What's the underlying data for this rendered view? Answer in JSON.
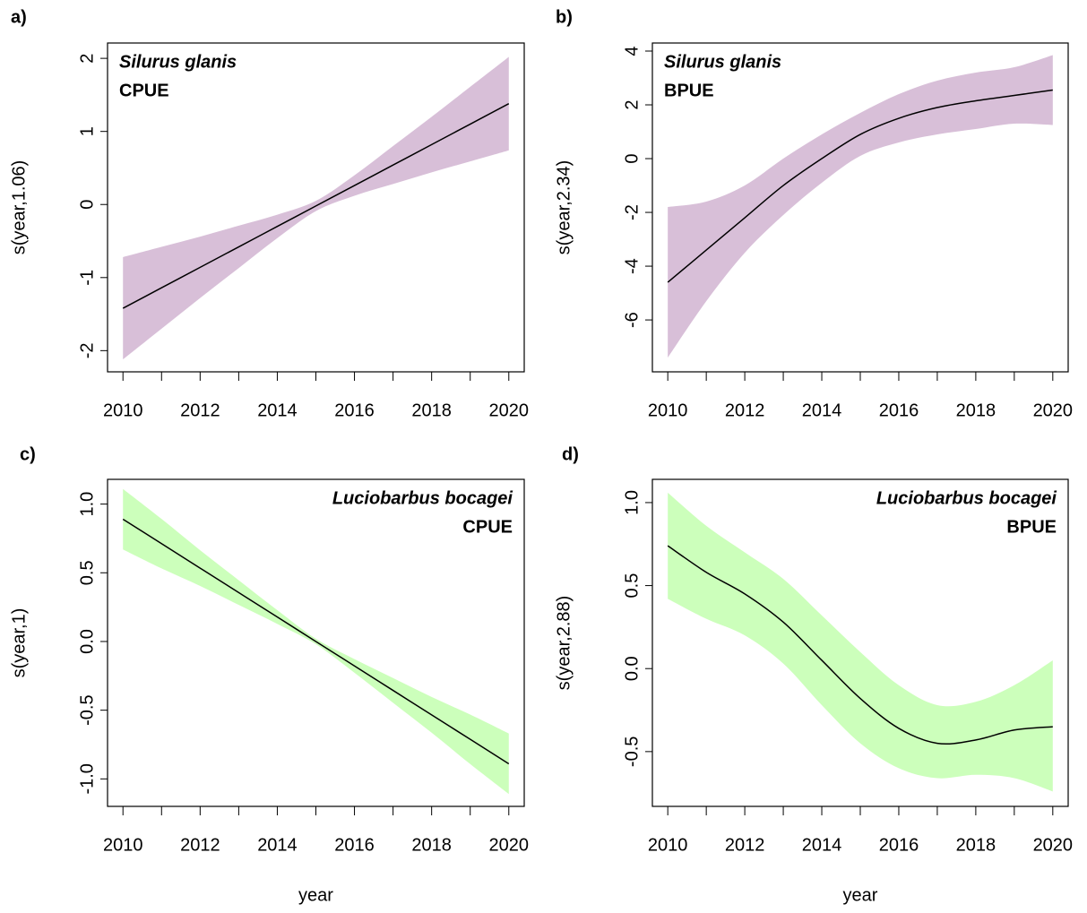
{
  "chart_data": [
    {
      "type": "line",
      "label": "a)",
      "species": "Silurus glanis",
      "metric": "CPUE",
      "ylabel": "s(year,1.06)",
      "annotation_corner": "top-left",
      "band_color": "#d8bfd8",
      "line_color": "#000000",
      "x": [
        2010,
        2011,
        2012,
        2013,
        2014,
        2015,
        2016,
        2017,
        2018,
        2019,
        2020
      ],
      "values": [
        -1.42,
        -1.14,
        -0.86,
        -0.58,
        -0.3,
        -0.02,
        0.26,
        0.54,
        0.82,
        1.1,
        1.38
      ],
      "lower": [
        -2.12,
        -1.7,
        -1.28,
        -0.87,
        -0.46,
        -0.09,
        0.12,
        0.28,
        0.44,
        0.59,
        0.74
      ],
      "upper": [
        -0.72,
        -0.58,
        -0.44,
        -0.29,
        -0.14,
        0.05,
        0.4,
        0.8,
        1.2,
        1.61,
        2.02
      ],
      "xlim": [
        2009.6,
        2020.4
      ],
      "ylim": [
        -2.29,
        2.21
      ],
      "xticks": [
        2010,
        2012,
        2014,
        2016,
        2018,
        2020
      ],
      "yticks": [
        -2,
        -1,
        0,
        1,
        2
      ]
    },
    {
      "type": "line",
      "label": "b)",
      "species": "Silurus glanis",
      "metric": "BPUE",
      "ylabel": "s(year,2.34)",
      "annotation_corner": "top-left",
      "band_color": "#d8bfd8",
      "line_color": "#000000",
      "x": [
        2010,
        2011,
        2012,
        2013,
        2014,
        2015,
        2016,
        2017,
        2018,
        2019,
        2020
      ],
      "values": [
        -4.6,
        -3.4,
        -2.2,
        -1.0,
        0.0,
        0.9,
        1.5,
        1.9,
        2.15,
        2.35,
        2.55
      ],
      "lower": [
        -7.4,
        -5.3,
        -3.5,
        -2.1,
        -0.9,
        0.1,
        0.6,
        0.9,
        1.1,
        1.3,
        1.25
      ],
      "upper": [
        -1.8,
        -1.6,
        -1.0,
        0.0,
        0.9,
        1.7,
        2.4,
        2.9,
        3.2,
        3.4,
        3.85
      ],
      "xlim": [
        2009.6,
        2020.4
      ],
      "ylim": [
        -7.93,
        4.3
      ],
      "xticks": [
        2010,
        2012,
        2014,
        2016,
        2018,
        2020
      ],
      "yticks": [
        -6,
        -4,
        -2,
        0,
        2,
        4
      ]
    },
    {
      "type": "line",
      "label": "c)",
      "species": "Luciobarbus bocagei",
      "metric": "CPUE",
      "ylabel": "s(year,1)",
      "xlabel": "year",
      "annotation_corner": "top-right",
      "band_color": "#ccffbb",
      "line_color": "#000000",
      "x": [
        2010,
        2011,
        2012,
        2013,
        2014,
        2015,
        2016,
        2017,
        2018,
        2019,
        2020
      ],
      "values": [
        0.89,
        0.712,
        0.534,
        0.356,
        0.178,
        0.0,
        -0.178,
        -0.356,
        -0.534,
        -0.712,
        -0.89
      ],
      "lower": [
        0.67,
        0.532,
        0.404,
        0.266,
        0.128,
        -0.02,
        -0.228,
        -0.446,
        -0.664,
        -0.892,
        -1.11
      ],
      "upper": [
        1.11,
        0.892,
        0.664,
        0.446,
        0.228,
        0.02,
        -0.128,
        -0.266,
        -0.404,
        -0.532,
        -0.67
      ],
      "xlim": [
        2009.6,
        2020.4
      ],
      "ylim": [
        -1.2,
        1.18
      ],
      "xticks": [
        2010,
        2012,
        2014,
        2016,
        2018,
        2020
      ],
      "yticks": [
        {
          "value": -1,
          "label": "-1.0"
        },
        {
          "value": -0.5,
          "label": "-0.5"
        },
        {
          "value": 0,
          "label": "0.0"
        },
        {
          "value": 0.5,
          "label": "0.5"
        },
        {
          "value": 1,
          "label": "1.0"
        }
      ]
    },
    {
      "type": "line",
      "label": "d)",
      "species": "Luciobarbus bocagei",
      "metric": "BPUE",
      "ylabel": "s(year,2.88)",
      "xlabel": "year",
      "annotation_corner": "top-right",
      "band_color": "#ccffbb",
      "line_color": "#000000",
      "x": [
        2010,
        2011,
        2012,
        2013,
        2014,
        2015,
        2016,
        2017,
        2018,
        2019,
        2020
      ],
      "values": [
        0.74,
        0.58,
        0.45,
        0.28,
        0.05,
        -0.18,
        -0.36,
        -0.45,
        -0.43,
        -0.37,
        -0.35
      ],
      "lower": [
        0.42,
        0.3,
        0.2,
        0.03,
        -0.22,
        -0.45,
        -0.6,
        -0.66,
        -0.64,
        -0.66,
        -0.74
      ],
      "upper": [
        1.06,
        0.86,
        0.7,
        0.54,
        0.32,
        0.1,
        -0.1,
        -0.22,
        -0.2,
        -0.1,
        0.05
      ],
      "xlim": [
        2009.6,
        2020.4
      ],
      "ylim": [
        -0.83,
        1.14
      ],
      "xticks": [
        2010,
        2012,
        2014,
        2016,
        2018,
        2020
      ],
      "yticks": [
        {
          "value": -0.5,
          "label": "-0.5"
        },
        {
          "value": 0,
          "label": "0.0"
        },
        {
          "value": 0.5,
          "label": "0.5"
        },
        {
          "value": 1,
          "label": "1.0"
        }
      ]
    }
  ]
}
